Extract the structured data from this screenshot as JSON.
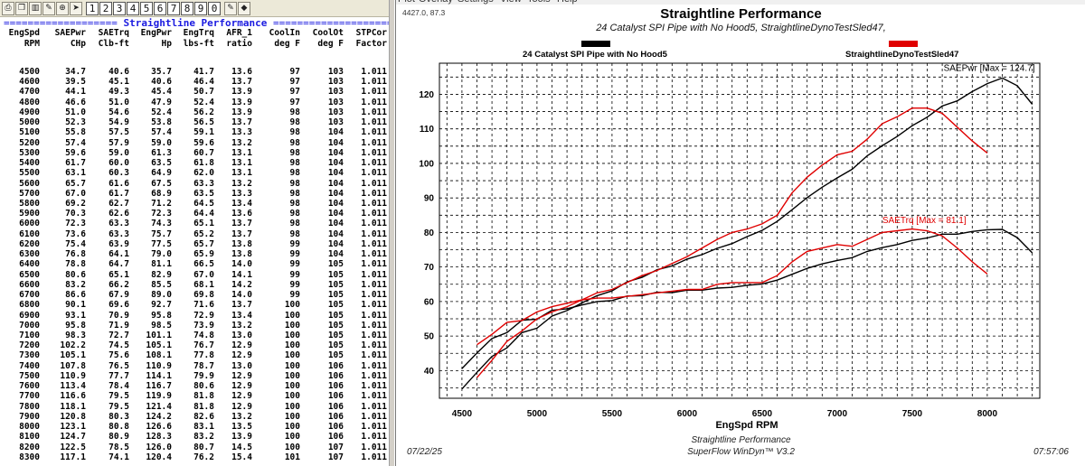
{
  "toolbar": {
    "buttons": [
      "print-icon",
      "copy-icon",
      "chart-icon",
      "edit-icon",
      "zoom-icon",
      "arrow-icon"
    ],
    "pages": [
      "1",
      "2",
      "3",
      "4",
      "5",
      "6",
      "7",
      "8",
      "9",
      "0"
    ]
  },
  "table": {
    "section_title": "Straightline Performance",
    "columns": [
      {
        "top": "EngSpd",
        "bottom": "RPM"
      },
      {
        "top": "SAEPwr",
        "bottom": "CHp"
      },
      {
        "top": "SAETrq",
        "bottom": "Clb-ft"
      },
      {
        "top": "EngPwr",
        "bottom": "Hp"
      },
      {
        "top": "EngTrq",
        "bottom": "lbs-ft"
      },
      {
        "top": "AFR_1",
        "bottom": "ratio"
      },
      {
        "top": "CoolIn",
        "bottom": "deg F"
      },
      {
        "top": "CoolOt",
        "bottom": "deg F"
      },
      {
        "top": "STPCor",
        "bottom": "Factor"
      }
    ],
    "rows": [
      [
        "4500",
        "34.7",
        "40.6",
        "35.7",
        "41.7",
        "13.6",
        "97",
        "103",
        "1.011"
      ],
      [
        "4600",
        "39.5",
        "45.1",
        "40.6",
        "46.4",
        "13.7",
        "97",
        "103",
        "1.011"
      ],
      [
        "4700",
        "44.1",
        "49.3",
        "45.4",
        "50.7",
        "13.9",
        "97",
        "103",
        "1.011"
      ],
      [
        "4800",
        "46.6",
        "51.0",
        "47.9",
        "52.4",
        "13.9",
        "97",
        "103",
        "1.011"
      ],
      [
        "4900",
        "51.0",
        "54.6",
        "52.4",
        "56.2",
        "13.9",
        "98",
        "103",
        "1.011"
      ],
      [
        "5000",
        "52.3",
        "54.9",
        "53.8",
        "56.5",
        "13.7",
        "98",
        "103",
        "1.011"
      ],
      [
        "5100",
        "55.8",
        "57.5",
        "57.4",
        "59.1",
        "13.3",
        "98",
        "104",
        "1.011"
      ],
      [
        "5200",
        "57.4",
        "57.9",
        "59.0",
        "59.6",
        "13.2",
        "98",
        "104",
        "1.011"
      ],
      [
        "5300",
        "59.6",
        "59.0",
        "61.3",
        "60.7",
        "13.1",
        "98",
        "104",
        "1.011"
      ],
      [
        "5400",
        "61.7",
        "60.0",
        "63.5",
        "61.8",
        "13.1",
        "98",
        "104",
        "1.011"
      ],
      [
        "5500",
        "63.1",
        "60.3",
        "64.9",
        "62.0",
        "13.1",
        "98",
        "104",
        "1.011"
      ],
      [
        "5600",
        "65.7",
        "61.6",
        "67.5",
        "63.3",
        "13.2",
        "98",
        "104",
        "1.011"
      ],
      [
        "5700",
        "67.0",
        "61.7",
        "68.9",
        "63.5",
        "13.3",
        "98",
        "104",
        "1.011"
      ],
      [
        "5800",
        "69.2",
        "62.7",
        "71.2",
        "64.5",
        "13.4",
        "98",
        "104",
        "1.011"
      ],
      [
        "5900",
        "70.3",
        "62.6",
        "72.3",
        "64.4",
        "13.6",
        "98",
        "104",
        "1.011"
      ],
      [
        "6000",
        "72.3",
        "63.3",
        "74.3",
        "65.1",
        "13.7",
        "98",
        "104",
        "1.011"
      ],
      [
        "6100",
        "73.6",
        "63.3",
        "75.7",
        "65.2",
        "13.7",
        "98",
        "104",
        "1.011"
      ],
      [
        "6200",
        "75.4",
        "63.9",
        "77.5",
        "65.7",
        "13.8",
        "99",
        "104",
        "1.011"
      ],
      [
        "6300",
        "76.8",
        "64.1",
        "79.0",
        "65.9",
        "13.8",
        "99",
        "104",
        "1.011"
      ],
      [
        "6400",
        "78.8",
        "64.7",
        "81.1",
        "66.5",
        "14.0",
        "99",
        "105",
        "1.011"
      ],
      [
        "6500",
        "80.6",
        "65.1",
        "82.9",
        "67.0",
        "14.1",
        "99",
        "105",
        "1.011"
      ],
      [
        "6600",
        "83.2",
        "66.2",
        "85.5",
        "68.1",
        "14.2",
        "99",
        "105",
        "1.011"
      ],
      [
        "6700",
        "86.6",
        "67.9",
        "89.0",
        "69.8",
        "14.0",
        "99",
        "105",
        "1.011"
      ],
      [
        "6800",
        "90.1",
        "69.6",
        "92.7",
        "71.6",
        "13.7",
        "100",
        "105",
        "1.011"
      ],
      [
        "6900",
        "93.1",
        "70.9",
        "95.8",
        "72.9",
        "13.4",
        "100",
        "105",
        "1.011"
      ],
      [
        "7000",
        "95.8",
        "71.9",
        "98.5",
        "73.9",
        "13.2",
        "100",
        "105",
        "1.011"
      ],
      [
        "7100",
        "98.3",
        "72.7",
        "101.1",
        "74.8",
        "13.0",
        "100",
        "105",
        "1.011"
      ],
      [
        "7200",
        "102.2",
        "74.5",
        "105.1",
        "76.7",
        "12.9",
        "100",
        "105",
        "1.011"
      ],
      [
        "7300",
        "105.1",
        "75.6",
        "108.1",
        "77.8",
        "12.9",
        "100",
        "105",
        "1.011"
      ],
      [
        "7400",
        "107.8",
        "76.5",
        "110.9",
        "78.7",
        "13.0",
        "100",
        "106",
        "1.011"
      ],
      [
        "7500",
        "110.9",
        "77.7",
        "114.1",
        "79.9",
        "12.9",
        "100",
        "106",
        "1.011"
      ],
      [
        "7600",
        "113.4",
        "78.4",
        "116.7",
        "80.6",
        "12.9",
        "100",
        "106",
        "1.011"
      ],
      [
        "7700",
        "116.6",
        "79.5",
        "119.9",
        "81.8",
        "12.9",
        "100",
        "106",
        "1.011"
      ],
      [
        "7800",
        "118.1",
        "79.5",
        "121.4",
        "81.8",
        "12.9",
        "100",
        "106",
        "1.011"
      ],
      [
        "7900",
        "120.8",
        "80.3",
        "124.2",
        "82.6",
        "13.2",
        "100",
        "106",
        "1.011"
      ],
      [
        "8000",
        "123.1",
        "80.8",
        "126.6",
        "83.1",
        "13.5",
        "100",
        "106",
        "1.011"
      ],
      [
        "8100",
        "124.7",
        "80.9",
        "128.3",
        "83.2",
        "13.9",
        "100",
        "106",
        "1.011"
      ],
      [
        "8200",
        "122.5",
        "78.5",
        "126.0",
        "80.7",
        "14.5",
        "100",
        "107",
        "1.011"
      ],
      [
        "8300",
        "117.1",
        "74.1",
        "120.4",
        "76.2",
        "15.4",
        "101",
        "107",
        "1.011"
      ]
    ]
  },
  "window": {
    "menu": [
      "Plot",
      "Overlay",
      "Settings",
      "View",
      "Tools",
      "Help"
    ],
    "readout": "4427.0, 87.3",
    "footer_date": "07/22/25",
    "footer_time": "07:57:06",
    "footer_line1": "Straightline Performance",
    "footer_line2": "SuperFlow WinDyn™ V3.2"
  },
  "chart_data": {
    "type": "line",
    "title": "Straightline Performance",
    "subtitle": "24 Catalyst SPI Pipe with No Hood5, StraightlineDynoTestSled47,",
    "xlabel": "EngSpd RPM",
    "ylabel": "",
    "xlim": [
      4350,
      8350
    ],
    "ylim": [
      32,
      129
    ],
    "xticks": [
      "4500",
      "5000",
      "5500",
      "6000",
      "6500",
      "7000",
      "7500",
      "8000"
    ],
    "yticks": [
      "40",
      "50",
      "60",
      "70",
      "80",
      "90",
      "100",
      "110",
      "120"
    ],
    "grid": true,
    "legend": [
      {
        "name": "24 Catalyst SPI Pipe with No Hood5",
        "color": "#000000"
      },
      {
        "name": "StraightlineDynoTestSled47",
        "color": "#e00000"
      }
    ],
    "annotations": [
      {
        "text": "SAEPwr [Max = 124.7]",
        "color": "#000000",
        "x": 7950,
        "y": 124.7
      },
      {
        "text": "SAETrq [Max = 81.1]",
        "color": "#e00000",
        "x": 7500,
        "y": 81.1
      }
    ],
    "series": [
      {
        "name": "24 Catalyst SPI Pipe with No Hood5",
        "metric": "SAEPwr",
        "color": "#000000",
        "x": [
          4500,
          4600,
          4700,
          4800,
          4900,
          5000,
          5100,
          5200,
          5300,
          5400,
          5500,
          5600,
          5700,
          5800,
          5900,
          6000,
          6100,
          6200,
          6300,
          6400,
          6500,
          6600,
          6700,
          6800,
          6900,
          7000,
          7100,
          7200,
          7300,
          7400,
          7500,
          7600,
          7700,
          7800,
          7900,
          8000,
          8100,
          8200,
          8300
        ],
        "values": [
          34.7,
          39.5,
          44.1,
          46.6,
          51.0,
          52.3,
          55.8,
          57.4,
          59.6,
          61.7,
          63.1,
          65.7,
          67.0,
          69.2,
          70.3,
          72.3,
          73.6,
          75.4,
          76.8,
          78.8,
          80.6,
          83.2,
          86.6,
          90.1,
          93.1,
          95.8,
          98.3,
          102.2,
          105.1,
          107.8,
          110.9,
          113.4,
          116.6,
          118.1,
          120.8,
          123.1,
          124.7,
          122.5,
          117.1
        ]
      },
      {
        "name": "24 Catalyst SPI Pipe with No Hood5",
        "metric": "SAETrq",
        "color": "#000000",
        "x": [
          4500,
          4600,
          4700,
          4800,
          4900,
          5000,
          5100,
          5200,
          5300,
          5400,
          5500,
          5600,
          5700,
          5800,
          5900,
          6000,
          6100,
          6200,
          6300,
          6400,
          6500,
          6600,
          6700,
          6800,
          6900,
          7000,
          7100,
          7200,
          7300,
          7400,
          7500,
          7600,
          7700,
          7800,
          7900,
          8000,
          8100,
          8200,
          8300
        ],
        "values": [
          40.6,
          45.1,
          49.3,
          51.0,
          54.6,
          54.9,
          57.5,
          57.9,
          59.0,
          60.0,
          60.3,
          61.6,
          61.7,
          62.7,
          62.6,
          63.3,
          63.3,
          63.9,
          64.1,
          64.7,
          65.1,
          66.2,
          67.9,
          69.6,
          70.9,
          71.9,
          72.7,
          74.5,
          75.6,
          76.5,
          77.7,
          78.4,
          79.5,
          79.5,
          80.3,
          80.8,
          80.9,
          78.5,
          74.1
        ]
      },
      {
        "name": "StraightlineDynoTestSled47",
        "metric": "SAEPwr",
        "color": "#e00000",
        "x": [
          4600,
          4700,
          4800,
          4900,
          5000,
          5100,
          5200,
          5300,
          5400,
          5500,
          5600,
          5700,
          5800,
          5900,
          6000,
          6100,
          6200,
          6300,
          6400,
          6500,
          6600,
          6700,
          6800,
          6900,
          7000,
          7100,
          7200,
          7300,
          7400,
          7500,
          7600,
          7700,
          7800,
          7900,
          8000
        ],
        "values": [
          38.0,
          43.0,
          48.5,
          51.5,
          55.0,
          57.0,
          58.5,
          60.5,
          62.5,
          63.5,
          65.5,
          67.5,
          69.0,
          71.0,
          73.0,
          75.5,
          78.0,
          80.0,
          81.0,
          82.5,
          85.0,
          91.5,
          96.0,
          99.5,
          102.5,
          103.5,
          107.0,
          111.5,
          113.5,
          116.0,
          116.0,
          114.5,
          110.5,
          106.5,
          103.0
        ]
      },
      {
        "name": "StraightlineDynoTestSled47",
        "metric": "SAETrq",
        "color": "#e00000",
        "x": [
          4600,
          4700,
          4800,
          4900,
          5000,
          5100,
          5200,
          5300,
          5400,
          5500,
          5600,
          5700,
          5800,
          5900,
          6000,
          6100,
          6200,
          6300,
          6400,
          6500,
          6600,
          6700,
          6800,
          6900,
          7000,
          7100,
          7200,
          7300,
          7400,
          7500,
          7600,
          7700,
          7800,
          7900,
          8000
        ],
        "values": [
          47.5,
          50.5,
          54.0,
          54.5,
          57.0,
          58.5,
          59.5,
          60.5,
          61.0,
          61.0,
          61.5,
          62.0,
          62.5,
          63.0,
          63.5,
          63.5,
          65.0,
          65.5,
          65.5,
          65.5,
          67.5,
          71.5,
          74.5,
          75.5,
          76.5,
          76.0,
          78.0,
          80.0,
          80.5,
          81.0,
          80.5,
          79.0,
          75.5,
          71.5,
          68.0
        ]
      }
    ]
  }
}
